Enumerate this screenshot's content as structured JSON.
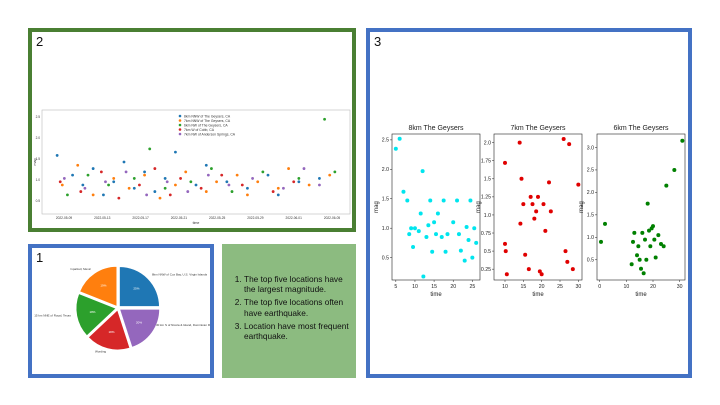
{
  "panels": {
    "scatter_panel": {
      "number": "2"
    },
    "small_multiples_panel": {
      "number": "3"
    },
    "pie_panel": {
      "number": "1"
    }
  },
  "notes": {
    "items": [
      "The top five locations have the largest magnitude.",
      "The top five locations often have earthquake.",
      "Location have most frequent earthquake."
    ]
  },
  "chart_data": [
    {
      "type": "scatter",
      "xlabel": "time",
      "ylabel": "mag",
      "x_ticks": [
        "2022-05-09",
        "2022-05-13",
        "2022-05-17",
        "2022-05-21",
        "2022-05-25",
        "2022-05-29",
        "2022-06-01",
        "2022-06-05"
      ],
      "y_ticks": [
        "0.5",
        "1.0",
        "1.5",
        "2.0",
        "2.5"
      ],
      "xlim": [
        0,
        28
      ],
      "ylim": [
        0.2,
        3.0
      ],
      "legend_position": "top-center",
      "series": [
        {
          "name": "8km NNW of The Geysers, CA",
          "color": "#1f77b4",
          "points": [
            [
              0.5,
              1.8
            ],
            [
              2,
              1.2
            ],
            [
              3,
              0.9
            ],
            [
              4,
              1.4
            ],
            [
              5,
              0.6
            ],
            [
              6,
              1.0
            ],
            [
              7,
              1.6
            ],
            [
              8,
              0.8
            ],
            [
              9,
              1.3
            ],
            [
              10,
              0.7
            ],
            [
              11,
              1.1
            ],
            [
              12,
              1.9
            ],
            [
              14,
              0.9
            ],
            [
              15,
              1.5
            ],
            [
              17,
              1.0
            ],
            [
              19,
              0.8
            ],
            [
              21,
              1.2
            ],
            [
              22,
              0.6
            ],
            [
              24,
              1.0
            ],
            [
              26,
              1.1
            ]
          ]
        },
        {
          "name": "7km NNW of The Geysers, CA",
          "color": "#ff7f0e",
          "points": [
            [
              1,
              0.9
            ],
            [
              2.5,
              1.5
            ],
            [
              4,
              0.6
            ],
            [
              6,
              1.1
            ],
            [
              7.5,
              0.8
            ],
            [
              9,
              1.2
            ],
            [
              10.5,
              0.5
            ],
            [
              12,
              0.9
            ],
            [
              13,
              1.3
            ],
            [
              15,
              0.7
            ],
            [
              16,
              1.0
            ],
            [
              18,
              1.2
            ],
            [
              19,
              0.6
            ],
            [
              20,
              1.0
            ],
            [
              22,
              0.8
            ],
            [
              23,
              1.4
            ],
            [
              25,
              0.9
            ],
            [
              27,
              1.2
            ]
          ]
        },
        {
          "name": "6km NW of The Geysers, CA",
          "color": "#2ca02c",
          "points": [
            [
              1.5,
              0.6
            ],
            [
              3.5,
              1.2
            ],
            [
              5.5,
              0.9
            ],
            [
              8,
              1.1
            ],
            [
              9.5,
              2.0
            ],
            [
              11,
              0.8
            ],
            [
              13.5,
              1.0
            ],
            [
              15.5,
              1.4
            ],
            [
              17.5,
              0.7
            ],
            [
              20.5,
              1.3
            ],
            [
              24,
              1.1
            ],
            [
              26.5,
              2.9
            ],
            [
              27.5,
              1.3
            ]
          ]
        },
        {
          "name": "7km W of Cobb, CA",
          "color": "#d62728",
          "points": [
            [
              0.8,
              1.0
            ],
            [
              2.8,
              0.7
            ],
            [
              4.8,
              1.3
            ],
            [
              6.5,
              0.5
            ],
            [
              8.5,
              0.9
            ],
            [
              10,
              1.4
            ],
            [
              11.5,
              0.6
            ],
            [
              12.5,
              1.1
            ],
            [
              14.5,
              0.8
            ],
            [
              16.5,
              1.2
            ],
            [
              18.5,
              0.9
            ],
            [
              21.5,
              0.7
            ],
            [
              23.5,
              1.0
            ]
          ]
        },
        {
          "name": "7km NW of Anderson Springs, CA",
          "color": "#9467bd",
          "points": [
            [
              1.2,
              1.1
            ],
            [
              3.2,
              0.8
            ],
            [
              5.2,
              1.0
            ],
            [
              7.2,
              1.3
            ],
            [
              9.2,
              0.6
            ],
            [
              11.2,
              1.0
            ],
            [
              13.2,
              0.7
            ],
            [
              15.2,
              1.2
            ],
            [
              17.2,
              0.9
            ],
            [
              19.5,
              1.1
            ],
            [
              22.5,
              0.8
            ],
            [
              24.5,
              1.4
            ],
            [
              26,
              0.9
            ]
          ]
        }
      ]
    },
    {
      "type": "scatter",
      "title": "8km  The Geysers",
      "xlabel": "time",
      "ylabel": "mag",
      "xlim": [
        4,
        27
      ],
      "ylim": [
        0.12,
        2.6
      ],
      "x_ticks": [
        5,
        10,
        15,
        20,
        25
      ],
      "y_ticks": [
        0.5,
        1.0,
        1.5,
        2.0,
        2.5
      ],
      "color": "#00e5ee",
      "points": [
        [
          5,
          2.35
        ],
        [
          6,
          2.52
        ],
        [
          7,
          1.62
        ],
        [
          8,
          1.47
        ],
        [
          8.5,
          0.9
        ],
        [
          9,
          1.0
        ],
        [
          9.5,
          0.68
        ],
        [
          10,
          1.0
        ],
        [
          11,
          0.95
        ],
        [
          11.5,
          1.25
        ],
        [
          12,
          1.97
        ],
        [
          12.2,
          0.18
        ],
        [
          13,
          0.85
        ],
        [
          13.5,
          1.05
        ],
        [
          14,
          1.47
        ],
        [
          14.5,
          0.6
        ],
        [
          15,
          1.1
        ],
        [
          15.5,
          0.9
        ],
        [
          16,
          1.25
        ],
        [
          17,
          0.85
        ],
        [
          17.5,
          1.47
        ],
        [
          18,
          0.6
        ],
        [
          18.5,
          0.9
        ],
        [
          20,
          1.1
        ],
        [
          21,
          1.47
        ],
        [
          21.5,
          0.9
        ],
        [
          22,
          0.62
        ],
        [
          23,
          0.45
        ],
        [
          23.5,
          1.02
        ],
        [
          24,
          0.8
        ],
        [
          24.5,
          1.47
        ],
        [
          25,
          0.5
        ],
        [
          25.5,
          1.0
        ],
        [
          26,
          0.75
        ]
      ]
    },
    {
      "type": "scatter",
      "title": "7km The Geysers",
      "xlabel": "time",
      "ylabel": "mag",
      "xlim": [
        7,
        31
      ],
      "ylim": [
        0.1,
        2.12
      ],
      "x_ticks": [
        10,
        15,
        20,
        25,
        30
      ],
      "y_ticks": [
        0.25,
        0.5,
        0.75,
        1.0,
        1.25,
        1.5,
        1.75,
        2.0
      ],
      "color": "#e00000",
      "points": [
        [
          10,
          1.72
        ],
        [
          10,
          0.6
        ],
        [
          10.2,
          0.5
        ],
        [
          10.5,
          0.18
        ],
        [
          14,
          2.0
        ],
        [
          14.2,
          0.88
        ],
        [
          14.5,
          1.5
        ],
        [
          15,
          1.15
        ],
        [
          15.5,
          0.45
        ],
        [
          16.5,
          0.25
        ],
        [
          17,
          1.25
        ],
        [
          17.5,
          1.15
        ],
        [
          18,
          0.95
        ],
        [
          18.5,
          1.05
        ],
        [
          19,
          1.25
        ],
        [
          19.5,
          0.22
        ],
        [
          20,
          0.18
        ],
        [
          20.5,
          1.15
        ],
        [
          21,
          0.78
        ],
        [
          22,
          1.45
        ],
        [
          22.5,
          1.05
        ],
        [
          26,
          2.05
        ],
        [
          26.5,
          0.5
        ],
        [
          27,
          0.35
        ],
        [
          27.5,
          1.98
        ],
        [
          28.5,
          0.25
        ],
        [
          30,
          1.42
        ]
      ]
    },
    {
      "type": "scatter",
      "title": "6km The Geysers",
      "xlabel": "time",
      "ylabel": "mag",
      "xlim": [
        -1,
        32
      ],
      "ylim": [
        0.05,
        3.3
      ],
      "x_ticks": [
        0,
        10,
        20,
        30
      ],
      "y_ticks": [
        0.5,
        1.0,
        1.5,
        2.0,
        2.5,
        3.0
      ],
      "color": "#008000",
      "points": [
        [
          0.5,
          0.9
        ],
        [
          2,
          1.3
        ],
        [
          12,
          0.4
        ],
        [
          12.5,
          0.9
        ],
        [
          13,
          1.1
        ],
        [
          14,
          0.6
        ],
        [
          14.5,
          0.8
        ],
        [
          15,
          0.5
        ],
        [
          15.5,
          0.3
        ],
        [
          16,
          1.1
        ],
        [
          16.5,
          0.2
        ],
        [
          17,
          0.95
        ],
        [
          17.5,
          0.5
        ],
        [
          18,
          1.75
        ],
        [
          18.5,
          1.15
        ],
        [
          19,
          0.8
        ],
        [
          19.5,
          1.2
        ],
        [
          20,
          1.25
        ],
        [
          20.5,
          0.95
        ],
        [
          21,
          0.55
        ],
        [
          22,
          1.05
        ],
        [
          23,
          0.85
        ],
        [
          24,
          0.8
        ],
        [
          25,
          2.15
        ],
        [
          28,
          2.5
        ],
        [
          31,
          3.15
        ]
      ]
    },
    {
      "type": "pie",
      "slices": [
        {
          "label": "8km NNW of Cox Bay, U.S. Virgin Islands",
          "value": 25,
          "color": "#1f77b4"
        },
        {
          "label": "",
          "value": 20,
          "color": "#9467bd"
        },
        {
          "label": "Wording",
          "value": 18,
          "color": "#d62728"
        },
        {
          "label": "15 km NNE of Royal, Texas",
          "value": 18,
          "color": "#2ca02c"
        },
        {
          "label": "Ixpalzetl, Mexic",
          "value": 19,
          "color": "#ff7f0e"
        }
      ],
      "side_label_right": "30 km S of Nicola & Island, Dominican Rep."
    }
  ]
}
